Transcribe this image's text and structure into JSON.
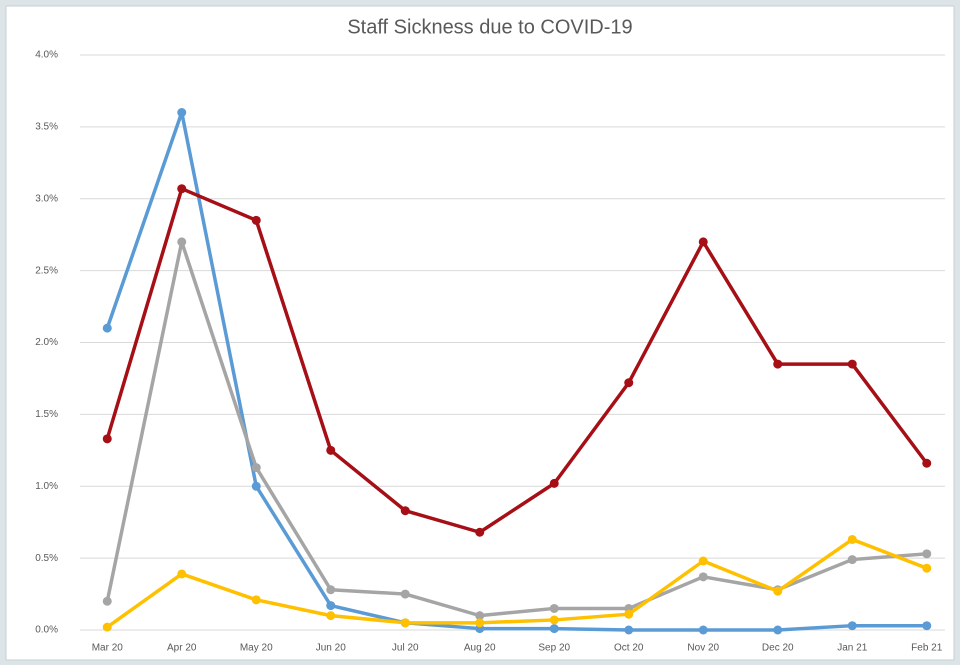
{
  "chart_data": {
    "type": "line",
    "title": "Staff Sickness due to COVID-19",
    "categories": [
      "Mar 20",
      "Apr 20",
      "May 20",
      "Jun 20",
      "Jul 20",
      "Aug 20",
      "Sep 20",
      "Oct 20",
      "Nov 20",
      "Dec 20",
      "Jan 21",
      "Feb 21"
    ],
    "series": [
      {
        "color": "#5b9bd5",
        "values": [
          2.1,
          3.6,
          1.0,
          0.17,
          0.05,
          0.01,
          0.01,
          0.0,
          0.0,
          0.0,
          0.03,
          0.03
        ]
      },
      {
        "color": "#a5a5a5",
        "values": [
          0.2,
          2.7,
          1.13,
          0.28,
          0.25,
          0.1,
          0.15,
          0.15,
          0.37,
          0.28,
          0.49,
          0.53
        ]
      },
      {
        "color": "#ffc000",
        "values": [
          0.02,
          0.39,
          0.21,
          0.1,
          0.05,
          0.05,
          0.07,
          0.11,
          0.48,
          0.27,
          0.63,
          0.43
        ]
      },
      {
        "color": "#a50f15",
        "values": [
          1.33,
          3.07,
          2.85,
          1.25,
          0.83,
          0.68,
          1.02,
          1.72,
          2.7,
          1.85,
          1.85,
          1.16
        ]
      }
    ],
    "ylim": [
      0,
      4
    ],
    "yticks": [
      {
        "value": 0,
        "label": "0.0%"
      },
      {
        "value": 0.5,
        "label": "0.5%"
      },
      {
        "value": 1,
        "label": "1.0%"
      },
      {
        "value": 1.5,
        "label": "1.5%"
      },
      {
        "value": 2,
        "label": "2.0%"
      },
      {
        "value": 2.5,
        "label": "2.5%"
      },
      {
        "value": 3,
        "label": "3.0%"
      },
      {
        "value": 3.5,
        "label": "3.5%"
      },
      {
        "value": 4,
        "label": "4.0%"
      }
    ],
    "grid": true
  }
}
